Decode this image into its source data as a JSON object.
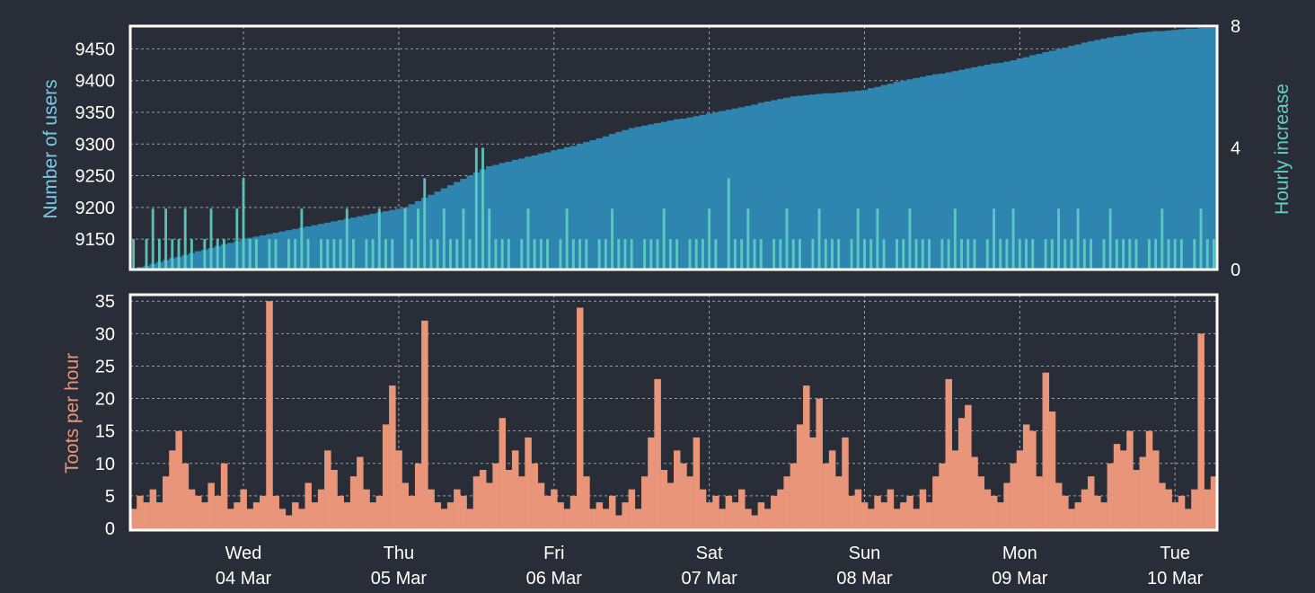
{
  "chart_data": [
    {
      "type": "bar",
      "title": "",
      "xlabel": "",
      "ylabel": "Number of users",
      "ylabel_right": "Hourly increase",
      "x_unit": "hours since start",
      "xlim": [
        0,
        168
      ],
      "ylim": [
        9102,
        9486
      ],
      "ylim_right": [
        0,
        8
      ],
      "yticks": [
        9150,
        9200,
        9250,
        9300,
        9350,
        9400,
        9450
      ],
      "yticks_right": [
        0,
        4,
        8
      ],
      "grid": true,
      "colors": {
        "users": "#2e86b0",
        "increase": "#5fcfc5",
        "users_label": "#7cc8e6",
        "increase_label": "#5fcfc5"
      },
      "series": [
        {
          "name": "Number of users",
          "axis": "left",
          "values": [
            9103,
            9106,
            9108,
            9111,
            9114,
            9117,
            9120,
            9122,
            9125,
            9128,
            9131,
            9133,
            9136,
            9139,
            9142,
            9144,
            9147,
            9150,
            9152,
            9154,
            9156,
            9158,
            9160,
            9162,
            9164,
            9166,
            9168,
            9170,
            9172,
            9174,
            9176,
            9178,
            9180,
            9182,
            9184,
            9186,
            9188,
            9190,
            9192,
            9194,
            9196,
            9198,
            9200,
            9205,
            9210,
            9215,
            9220,
            9225,
            9230,
            9235,
            9240,
            9245,
            9250,
            9255,
            9260,
            9265,
            9267,
            9270,
            9272,
            9275,
            9277,
            9280,
            9282,
            9285,
            9287,
            9290,
            9292,
            9295,
            9297,
            9300,
            9303,
            9306,
            9309,
            9312,
            9316,
            9319,
            9322,
            9325,
            9327,
            9329,
            9331,
            9333,
            9335,
            9337,
            9339,
            9340,
            9342,
            9344,
            9346,
            9348,
            9350,
            9352,
            9354,
            9356,
            9358,
            9360,
            9362,
            9365,
            9367,
            9369,
            9371,
            9373,
            9375,
            9376,
            9377,
            9378,
            9379,
            9380,
            9380,
            9381,
            9382,
            9383,
            9384,
            9385,
            9388,
            9390,
            9393,
            9395,
            9398,
            9400,
            9402,
            9404,
            9406,
            9408,
            9410,
            9411,
            9413,
            9415,
            9417,
            9419,
            9421,
            9423,
            9425,
            9427,
            9428,
            9430,
            9432,
            9435,
            9437,
            9440,
            9442,
            9445,
            9447,
            9450,
            9452,
            9455,
            9457,
            9460,
            9462,
            9464,
            9466,
            9468,
            9470,
            9471,
            9473,
            9475,
            9476,
            9477,
            9478,
            9478,
            9479,
            9480,
            9481,
            9482,
            9482,
            9483,
            9484,
            9485
          ]
        },
        {
          "name": "Hourly increase",
          "axis": "right",
          "values": [
            1,
            0,
            1,
            2,
            1,
            2,
            1,
            1,
            2,
            1,
            0,
            1,
            2,
            1,
            1,
            0,
            2,
            3,
            1,
            1,
            0,
            1,
            1,
            0,
            1,
            1,
            2,
            1,
            0,
            1,
            1,
            1,
            1,
            2,
            1,
            0,
            1,
            1,
            2,
            1,
            1,
            0,
            2,
            1,
            2,
            3,
            1,
            1,
            2,
            1,
            1,
            2,
            1,
            4,
            4,
            2,
            1,
            1,
            1,
            0,
            1,
            2,
            1,
            1,
            1,
            0,
            1,
            2,
            1,
            1,
            1,
            0,
            1,
            1,
            2,
            1,
            1,
            1,
            0,
            1,
            1,
            1,
            2,
            1,
            1,
            0,
            1,
            1,
            1,
            2,
            1,
            0,
            3,
            1,
            1,
            2,
            1,
            1,
            0,
            1,
            1,
            2,
            1,
            1,
            0,
            1,
            2,
            1,
            1,
            1,
            0,
            1,
            2,
            1,
            1,
            2,
            1,
            0,
            1,
            1,
            2,
            1,
            1,
            1,
            0,
            1,
            1,
            2,
            1,
            1,
            1,
            0,
            1,
            2,
            1,
            1,
            2,
            1,
            1,
            1,
            0,
            1,
            1,
            2,
            1,
            1,
            2,
            1,
            1,
            0,
            1,
            2,
            1,
            1,
            1,
            1,
            0,
            1,
            1,
            2,
            1,
            1,
            1,
            0,
            1,
            2,
            1,
            1
          ]
        }
      ]
    },
    {
      "type": "bar",
      "title": "",
      "xlabel": "",
      "ylabel": "Toots per hour",
      "x_unit": "hours since start",
      "xlim": [
        0,
        168
      ],
      "ylim": [
        0,
        36
      ],
      "yticks": [
        0,
        5,
        10,
        15,
        20,
        25,
        30,
        35
      ],
      "grid": true,
      "colors": {
        "toots": "#e8957a",
        "label": "#e8957a"
      },
      "xticks": [
        {
          "hour": 17.5,
          "day": "Wed",
          "date": "04 Mar"
        },
        {
          "hour": 41.5,
          "day": "Thu",
          "date": "05 Mar"
        },
        {
          "hour": 65.5,
          "day": "Fri",
          "date": "06 Mar"
        },
        {
          "hour": 89.5,
          "day": "Sat",
          "date": "07 Mar"
        },
        {
          "hour": 113.5,
          "day": "Sun",
          "date": "08 Mar"
        },
        {
          "hour": 137.5,
          "day": "Mon",
          "date": "09 Mar"
        },
        {
          "hour": 161.5,
          "day": "Tue",
          "date": "10 Mar"
        }
      ],
      "series": [
        {
          "name": "Toots per hour",
          "values": [
            3,
            5,
            4,
            6,
            4,
            8,
            12,
            15,
            10,
            6,
            5,
            4,
            7,
            5,
            10,
            3,
            4,
            6,
            3,
            4,
            5,
            35,
            5,
            3,
            2,
            4,
            3,
            7,
            4,
            6,
            12,
            9,
            5,
            4,
            8,
            11,
            6,
            4,
            5,
            16,
            22,
            12,
            7,
            5,
            10,
            32,
            6,
            4,
            3,
            4,
            6,
            5,
            3,
            8,
            9,
            7,
            10,
            17,
            9,
            12,
            8,
            14,
            10,
            7,
            5,
            6,
            4,
            3,
            5,
            34,
            8,
            3,
            4,
            3,
            5,
            2,
            4,
            6,
            3,
            8,
            14,
            23,
            9,
            7,
            12,
            10,
            8,
            14,
            6,
            4,
            5,
            3,
            5,
            4,
            6,
            3,
            2,
            4,
            3,
            5,
            6,
            8,
            10,
            16,
            22,
            14,
            20,
            10,
            12,
            8,
            14,
            5,
            6,
            4,
            3,
            5,
            4,
            6,
            3,
            4,
            5,
            3,
            6,
            4,
            8,
            10,
            23,
            12,
            17,
            19,
            11,
            8,
            6,
            5,
            4,
            7,
            10,
            12,
            16,
            15,
            8,
            24,
            18,
            7,
            5,
            3,
            4,
            6,
            8,
            5,
            4,
            10,
            13,
            12,
            15,
            9,
            11,
            15,
            12,
            7,
            6,
            4,
            5,
            3,
            6,
            30,
            6,
            8
          ]
        }
      ]
    }
  ]
}
